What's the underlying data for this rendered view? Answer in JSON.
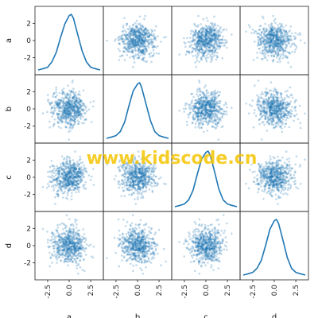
{
  "chart_data": {
    "type": "scatter_matrix",
    "variables": [
      "a",
      "b",
      "c",
      "d"
    ],
    "diagonal": "kde",
    "y_ticks": [
      "-2",
      "0",
      "2"
    ],
    "y_tick_values": [
      -2,
      0,
      2
    ],
    "x_ticks": [
      "-2.5",
      "0.0",
      "2.5"
    ],
    "x_tick_values": [
      -2.5,
      0.0,
      2.5
    ],
    "range": [
      -3.6,
      3.6
    ],
    "n_points": 1000,
    "distribution": "standard normal, mean 0, sd 1, uncorrelated",
    "kde_curves": [
      {
        "variable": "a",
        "x": [
          -3.6,
          -3.0,
          -2.5,
          -2.0,
          -1.5,
          -1.0,
          -0.5,
          0.0,
          0.25,
          0.5,
          1.0,
          1.5,
          2.0,
          2.5,
          3.0,
          3.6
        ],
        "density": [
          0.0,
          0.01,
          0.02,
          0.06,
          0.13,
          0.24,
          0.34,
          0.4,
          0.41,
          0.38,
          0.26,
          0.14,
          0.06,
          0.02,
          0.01,
          0.0
        ]
      },
      {
        "variable": "b",
        "x": [
          -3.6,
          -3.0,
          -2.5,
          -2.0,
          -1.5,
          -1.0,
          -0.5,
          0.0,
          0.25,
          0.5,
          1.0,
          1.5,
          2.0,
          2.5,
          3.0,
          3.6
        ],
        "density": [
          0.0,
          0.01,
          0.02,
          0.05,
          0.12,
          0.24,
          0.35,
          0.4,
          0.41,
          0.37,
          0.25,
          0.13,
          0.05,
          0.02,
          0.01,
          0.0
        ]
      },
      {
        "variable": "c",
        "x": [
          -3.6,
          -3.0,
          -2.5,
          -2.0,
          -1.5,
          -1.0,
          -0.5,
          0.0,
          0.25,
          0.5,
          1.0,
          1.5,
          2.0,
          2.5,
          3.0,
          3.6
        ],
        "density": [
          0.0,
          0.01,
          0.02,
          0.05,
          0.12,
          0.24,
          0.35,
          0.4,
          0.41,
          0.38,
          0.26,
          0.13,
          0.05,
          0.02,
          0.01,
          0.0
        ]
      },
      {
        "variable": "d",
        "x": [
          -3.6,
          -3.0,
          -2.5,
          -2.0,
          -1.5,
          -1.0,
          -0.5,
          0.0,
          0.25,
          0.5,
          1.0,
          1.5,
          2.0,
          2.5,
          3.0,
          3.6
        ],
        "density": [
          0.0,
          0.01,
          0.02,
          0.05,
          0.11,
          0.22,
          0.34,
          0.4,
          0.41,
          0.38,
          0.26,
          0.13,
          0.05,
          0.02,
          0.01,
          0.0
        ]
      }
    ],
    "watermark": "www.kidscode.cn",
    "colors": {
      "points": "#1f77b4",
      "line": "#1f77b4",
      "frame": "#222222",
      "watermark": "#f5c400"
    }
  }
}
